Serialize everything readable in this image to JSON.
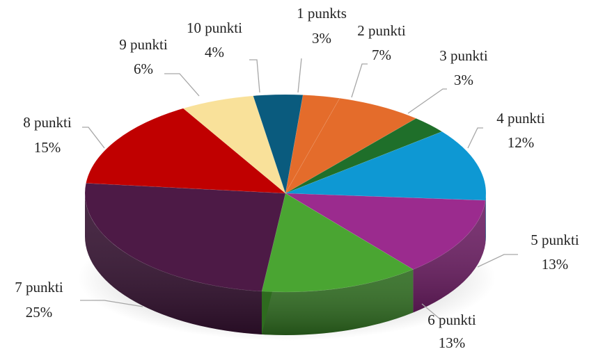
{
  "chart_data": {
    "type": "pie",
    "style": "3d-exploded-depth",
    "slices": [
      {
        "name": "1 punkts",
        "value": 3,
        "pct_label": "3%",
        "color": "#e46c2b",
        "side": "#b4541f"
      },
      {
        "name": "2 punkti",
        "value": 7,
        "pct_label": "7%",
        "color": "#e46c2b",
        "side": "#b4541f"
      },
      {
        "name": "3 punkti",
        "value": 3,
        "pct_label": "3%",
        "color": "#1f6f2a",
        "side": "#164f1e"
      },
      {
        "name": "4 punkti",
        "value": 12,
        "pct_label": "12%",
        "color": "#0e98d3",
        "side": "#0a6f9b"
      },
      {
        "name": "5 punkti",
        "value": 13,
        "pct_label": "13%",
        "color": "#9b2b8e",
        "side": "#6d1e64"
      },
      {
        "name": "6 punkti",
        "value": 13,
        "pct_label": "13%",
        "color": "#4aa532",
        "side": "#2e6b1f"
      },
      {
        "name": "7 punkti",
        "value": 25,
        "pct_label": "25%",
        "color": "#4d1a46",
        "side": "#341130"
      },
      {
        "name": "8 punkti",
        "value": 15,
        "pct_label": "15%",
        "color": "#c00000",
        "side": "#8a0000"
      },
      {
        "name": "9 punkti",
        "value": 6,
        "pct_label": "6%",
        "color": "#f9e19a",
        "side": "#d8bf72"
      },
      {
        "name": "10 punkti",
        "value": 4,
        "pct_label": "4%",
        "color": "#0a5b7e",
        "side": "#07405a"
      }
    ]
  }
}
